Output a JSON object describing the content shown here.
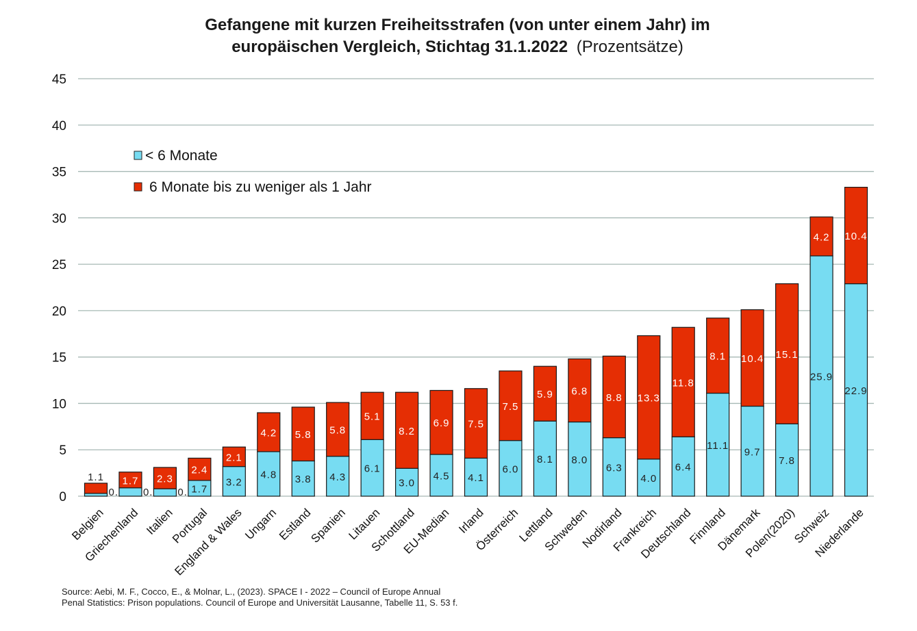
{
  "chart_data": {
    "type": "bar",
    "stacked": true,
    "title_bold_line1": "Gefangene mit kurzen Freiheitsstrafen (von unter einem Jahr) im",
    "title_bold_line2": "europäischen Vergleich, Stichtag 31.1.2022",
    "title_suffix": "(Prozentsätze)",
    "xlabel": "",
    "ylabel": "",
    "ylim": [
      0,
      45
    ],
    "yticks": [
      0,
      5,
      10,
      15,
      20,
      25,
      30,
      35,
      40,
      45
    ],
    "grid": true,
    "legend_position": "top-left",
    "categories": [
      "Belgien",
      "Griechenland",
      "Italien",
      "Portugal",
      "England & Wales",
      "Ungarn",
      "Estland",
      "Spanien",
      "Litauen",
      "Schottland",
      "EU-Median",
      "Irland",
      "Österreich",
      "Lettland",
      "Schweden",
      "Nodirland",
      "Frankreich",
      "Deutschland",
      "Finnland",
      "Dänemark",
      "Polen(2020)",
      "Schweiz",
      "Niederlande"
    ],
    "series": [
      {
        "name": "< 6 Monate",
        "color": "#77dcf2",
        "label_color": "#222222",
        "values": [
          0.3,
          0.9,
          0.8,
          1.7,
          3.2,
          4.8,
          3.8,
          4.3,
          6.1,
          3.0,
          4.5,
          4.1,
          6.0,
          8.1,
          8.0,
          6.3,
          4.0,
          6.4,
          11.1,
          9.7,
          7.8,
          25.9,
          22.9
        ]
      },
      {
        "name": "6 Monate bis zu weniger als 1 Jahr",
        "color": "#e52e04",
        "label_color": "#ffffff",
        "values": [
          1.1,
          1.7,
          2.3,
          2.4,
          2.1,
          4.2,
          5.8,
          5.8,
          5.1,
          8.2,
          6.9,
          7.5,
          7.5,
          5.9,
          6.8,
          8.8,
          13.3,
          11.8,
          8.1,
          10.4,
          15.1,
          4.2,
          10.4
        ]
      }
    ],
    "source_line1": "Source: Aebi, M. F., Cocco, E., & Molnar, L., (2023). SPACE I  - 2022 – Council of Europe Annual",
    "source_line2": "Penal Statistics: Prison populations. Council of Europe and Universität Lausanne, Tabelle 11, S. 53 f."
  }
}
